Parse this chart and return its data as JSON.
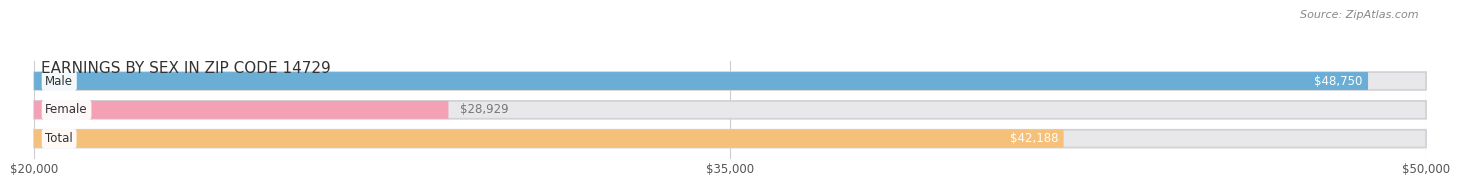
{
  "title": "EARNINGS BY SEX IN ZIP CODE 14729",
  "source": "Source: ZipAtlas.com",
  "categories": [
    "Male",
    "Female",
    "Total"
  ],
  "values": [
    48750,
    28929,
    42188
  ],
  "bar_colors": [
    "#6aaed6",
    "#f4a0b5",
    "#f5c07a"
  ],
  "bar_label_colors": [
    "white",
    "#777777",
    "white"
  ],
  "label_inside": [
    true,
    false,
    true
  ],
  "value_labels": [
    "$48,750",
    "$28,929",
    "$42,188"
  ],
  "xmin": 20000,
  "xmax": 50000,
  "xticks": [
    20000,
    35000,
    50000
  ],
  "xtick_labels": [
    "$20,000",
    "$35,000",
    "$50,000"
  ],
  "background_color": "#ffffff",
  "bar_bg_color": "#e8e8eb",
  "title_fontsize": 11,
  "bar_height": 0.62,
  "fig_width": 14.06,
  "fig_height": 1.96,
  "grid_color": "#cccccc"
}
